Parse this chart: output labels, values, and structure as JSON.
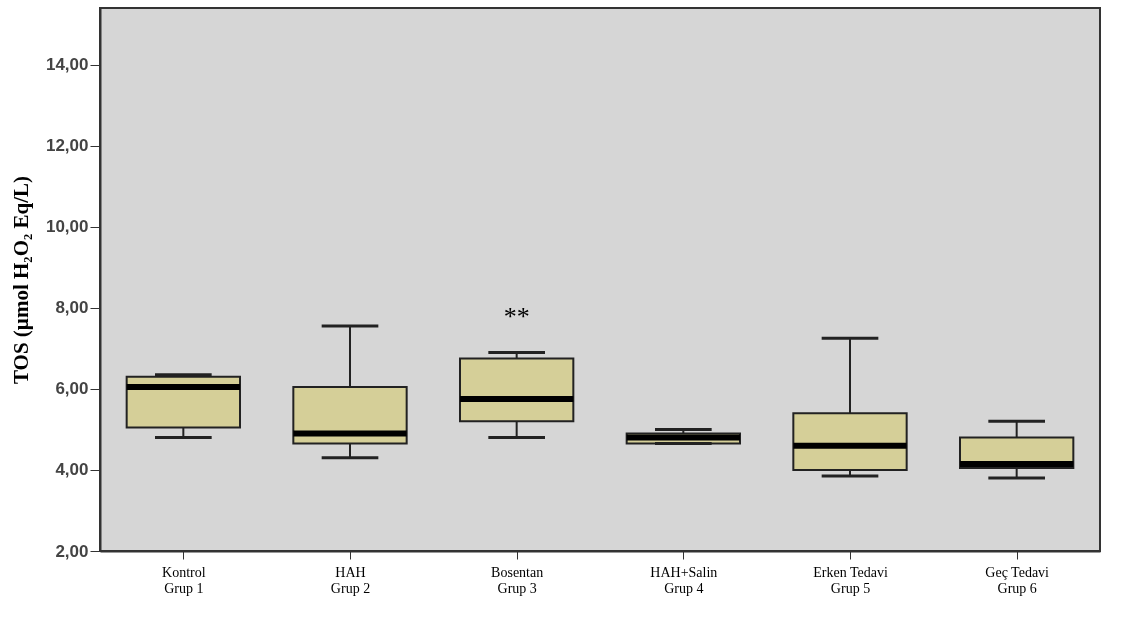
{
  "chart_data": {
    "type": "box",
    "ylabel": "TOS (µmol H₂O₂ Eq/L)",
    "categories": [
      "Kontrol\nGrup 1",
      "HAH\nGrup 2",
      "Bosentan\nGrup 3",
      "HAH+Salin\nGrup 4",
      "Erken Tedavi\nGrup 5",
      "Geç Tedavi\nGrup 6"
    ],
    "color": "#d5cf98",
    "boxes": [
      {
        "low": 4.8,
        "q1": 5.05,
        "median": 6.05,
        "q3": 6.3,
        "high": 6.35
      },
      {
        "low": 4.3,
        "q1": 4.65,
        "median": 4.9,
        "q3": 6.05,
        "high": 7.55
      },
      {
        "low": 4.8,
        "q1": 5.2,
        "median": 5.75,
        "q3": 6.75,
        "high": 6.9
      },
      {
        "low": 4.65,
        "q1": 4.65,
        "median": 4.8,
        "q3": 4.9,
        "high": 5.0
      },
      {
        "low": 3.85,
        "q1": 4.0,
        "median": 4.6,
        "q3": 5.4,
        "high": 7.25
      },
      {
        "low": 3.8,
        "q1": 4.05,
        "median": 4.15,
        "q3": 4.8,
        "high": 5.2
      }
    ],
    "ylim": [
      2,
      15.4
    ],
    "yticks": [
      {
        "value": 2,
        "label": "2,00"
      },
      {
        "value": 4,
        "label": "4,00"
      },
      {
        "value": 6,
        "label": "6,00"
      },
      {
        "value": 8,
        "label": "8,00"
      },
      {
        "value": 10,
        "label": "10,00"
      },
      {
        "value": 12,
        "label": "12,00"
      },
      {
        "value": 14,
        "label": "14,00"
      }
    ],
    "annotations": [
      {
        "text": "**",
        "x": "Bosentan\nGrup 3",
        "y": 6.9
      }
    ]
  }
}
